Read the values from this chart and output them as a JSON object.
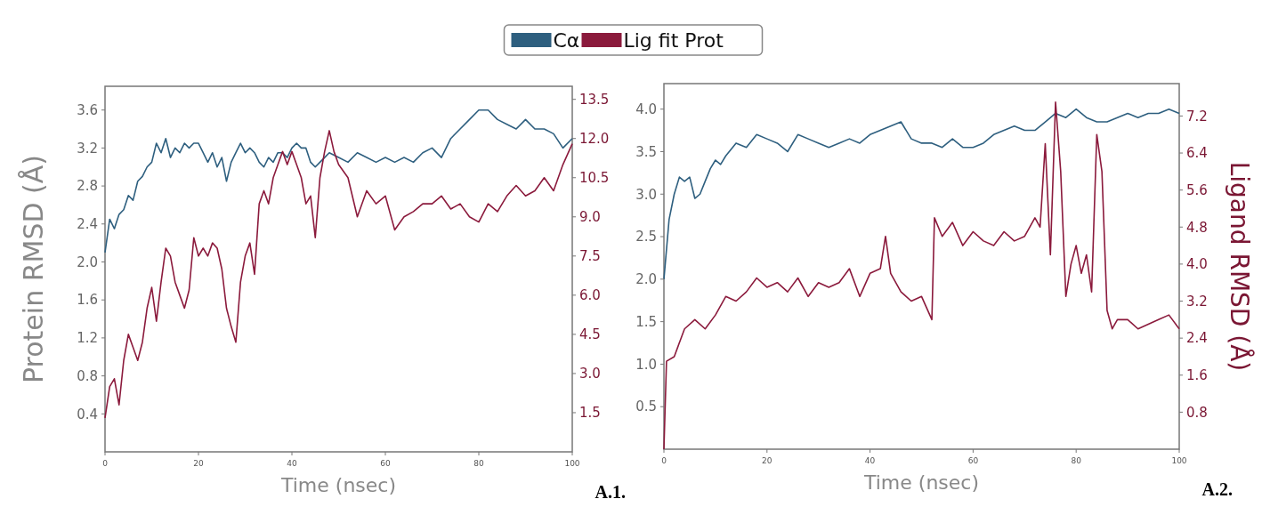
{
  "chart_data": [
    {
      "type": "line",
      "xlabel": "Time (nsec)",
      "ylabel": "Protein RMSD (Å)",
      "legend": "top",
      "annotations": [
        "A.1."
      ],
      "xlim": [
        0,
        100
      ],
      "xticks": [
        0,
        20,
        40,
        60,
        80,
        100
      ],
      "ylim": [
        0,
        3.85
      ],
      "yticks": [
        0.4,
        0.8,
        1.2,
        1.6,
        {
          "value": 2,
          "label": "2.0"
        },
        2.4,
        2.8,
        3.2,
        3.6
      ],
      "y2lim": [
        0,
        14
      ],
      "y2ticks": [
        1.5,
        {
          "value": 3,
          "label": "3.0"
        },
        4.5,
        {
          "value": 6,
          "label": "6.0"
        },
        7.5,
        {
          "value": 9,
          "label": "9.0"
        },
        10.5,
        {
          "value": 12,
          "label": "12.0"
        },
        13.5
      ],
      "series": [
        {
          "name": "Cα",
          "color": "#2e5f7f",
          "x": [
            0,
            1,
            2,
            3,
            4,
            5,
            6,
            7,
            8,
            9,
            10,
            11,
            12,
            13,
            14,
            15,
            16,
            17,
            18,
            19,
            20,
            21,
            22,
            23,
            24,
            25,
            26,
            27,
            28,
            29,
            30,
            31,
            32,
            33,
            34,
            35,
            36,
            37,
            38,
            39,
            40,
            41,
            42,
            43,
            44,
            45,
            46,
            47,
            48,
            50,
            52,
            54,
            56,
            58,
            60,
            62,
            64,
            66,
            68,
            70,
            72,
            74,
            76,
            78,
            80,
            82,
            84,
            86,
            88,
            90,
            92,
            94,
            96,
            98,
            100
          ],
          "values": [
            2.1,
            2.45,
            2.35,
            2.5,
            2.55,
            2.7,
            2.65,
            2.85,
            2.9,
            3.0,
            3.05,
            3.25,
            3.15,
            3.3,
            3.1,
            3.2,
            3.15,
            3.25,
            3.2,
            3.25,
            3.25,
            3.15,
            3.05,
            3.15,
            3.0,
            3.1,
            2.85,
            3.05,
            3.15,
            3.25,
            3.15,
            3.2,
            3.15,
            3.05,
            3.0,
            3.1,
            3.05,
            3.15,
            3.15,
            3.1,
            3.2,
            3.25,
            3.2,
            3.2,
            3.05,
            3.0,
            3.05,
            3.1,
            3.15,
            3.1,
            3.05,
            3.15,
            3.1,
            3.05,
            3.1,
            3.05,
            3.1,
            3.05,
            3.15,
            3.2,
            3.1,
            3.3,
            3.4,
            3.5,
            3.6,
            3.6,
            3.5,
            3.45,
            3.4,
            3.5,
            3.4,
            3.4,
            3.35,
            3.2,
            3.3
          ]
        },
        {
          "name": "Lig fit Prot",
          "color": "#8b1a3c",
          "axis": "y2",
          "x": [
            0,
            1,
            2,
            3,
            4,
            5,
            6,
            7,
            8,
            9,
            10,
            11,
            12,
            13,
            14,
            15,
            16,
            17,
            18,
            19,
            20,
            21,
            22,
            23,
            24,
            25,
            26,
            27,
            28,
            29,
            30,
            31,
            32,
            33,
            34,
            35,
            36,
            37,
            38,
            39,
            40,
            41,
            42,
            43,
            44,
            45,
            46,
            47,
            48,
            49,
            50,
            52,
            54,
            56,
            58,
            60,
            62,
            64,
            66,
            68,
            70,
            72,
            74,
            76,
            78,
            80,
            82,
            84,
            86,
            88,
            90,
            92,
            94,
            96,
            98,
            100
          ],
          "values": [
            1.3,
            2.5,
            2.8,
            1.8,
            3.5,
            4.5,
            4.0,
            3.5,
            4.2,
            5.5,
            6.3,
            5.0,
            6.5,
            7.8,
            7.5,
            6.5,
            6.0,
            5.5,
            6.2,
            8.2,
            7.5,
            7.8,
            7.5,
            8.0,
            7.8,
            7.0,
            5.5,
            4.8,
            4.2,
            6.5,
            7.5,
            8.0,
            6.8,
            9.5,
            10.0,
            9.5,
            10.5,
            11.0,
            11.5,
            11.0,
            11.5,
            11.0,
            10.5,
            9.5,
            9.8,
            8.2,
            10.5,
            11.5,
            12.3,
            11.5,
            11.0,
            10.5,
            9.0,
            10.0,
            9.5,
            9.8,
            8.5,
            9.0,
            9.2,
            9.5,
            9.5,
            9.8,
            9.3,
            9.5,
            9.0,
            8.8,
            9.5,
            9.2,
            9.8,
            10.2,
            9.8,
            10.0,
            10.5,
            10.0,
            11.0,
            11.8
          ]
        }
      ]
    },
    {
      "type": "line",
      "xlabel": "Time (nsec)",
      "y2label": "Ligand RMSD (Å)",
      "annotations": [
        "A.2."
      ],
      "xlim": [
        0,
        100
      ],
      "xticks": [
        0,
        20,
        40,
        60,
        80,
        100
      ],
      "ylim": [
        0,
        4.3
      ],
      "yticks": [
        0.5,
        {
          "value": 1,
          "label": "1.0"
        },
        1.5,
        {
          "value": 2,
          "label": "2.0"
        },
        2.5,
        {
          "value": 3,
          "label": "3.0"
        },
        3.5,
        {
          "value": 4,
          "label": "4.0"
        }
      ],
      "y2lim": [
        0,
        7.9
      ],
      "y2ticks": [
        0.8,
        1.6,
        2.4,
        3.2,
        {
          "value": 4,
          "label": "4.0"
        },
        4.8,
        5.6,
        6.4,
        7.2
      ],
      "series": [
        {
          "color": "#2e5f7f",
          "x": [
            0,
            1,
            2,
            3,
            4,
            5,
            6,
            7,
            8,
            9,
            10,
            11,
            12,
            14,
            16,
            18,
            20,
            22,
            24,
            26,
            28,
            30,
            32,
            34,
            36,
            38,
            40,
            42,
            44,
            46,
            48,
            50,
            52,
            54,
            56,
            58,
            60,
            62,
            64,
            66,
            68,
            70,
            72,
            74,
            76,
            78,
            80,
            82,
            84,
            86,
            88,
            90,
            92,
            94,
            96,
            98,
            100
          ],
          "values": [
            2.0,
            2.7,
            3.0,
            3.2,
            3.15,
            3.2,
            2.95,
            3.0,
            3.15,
            3.3,
            3.4,
            3.35,
            3.45,
            3.6,
            3.55,
            3.7,
            3.65,
            3.6,
            3.5,
            3.7,
            3.65,
            3.6,
            3.55,
            3.6,
            3.65,
            3.6,
            3.7,
            3.75,
            3.8,
            3.85,
            3.65,
            3.6,
            3.6,
            3.55,
            3.65,
            3.55,
            3.55,
            3.6,
            3.7,
            3.75,
            3.8,
            3.75,
            3.75,
            3.85,
            3.95,
            3.9,
            4.0,
            3.9,
            3.85,
            3.85,
            3.9,
            3.95,
            3.9,
            3.95,
            3.95,
            4.0,
            3.95
          ]
        },
        {
          "color": "#8b1a3c",
          "axis": "y2",
          "x": [
            0,
            0.5,
            2,
            4,
            6,
            8,
            10,
            12,
            14,
            16,
            18,
            20,
            22,
            24,
            26,
            28,
            30,
            32,
            34,
            36,
            38,
            40,
            42,
            43,
            44,
            46,
            48,
            50,
            52,
            52.5,
            54,
            56,
            58,
            60,
            62,
            64,
            66,
            68,
            70,
            72,
            73,
            74,
            75,
            76,
            77,
            78,
            79,
            80,
            81,
            82,
            83,
            84,
            85,
            86,
            87,
            88,
            90,
            92,
            94,
            96,
            98,
            100
          ],
          "values": [
            0.0,
            1.9,
            2.0,
            2.6,
            2.8,
            2.6,
            2.9,
            3.3,
            3.2,
            3.4,
            3.7,
            3.5,
            3.6,
            3.4,
            3.7,
            3.3,
            3.6,
            3.5,
            3.6,
            3.9,
            3.3,
            3.8,
            3.9,
            4.6,
            3.8,
            3.4,
            3.2,
            3.3,
            2.8,
            5.0,
            4.6,
            4.9,
            4.4,
            4.7,
            4.5,
            4.4,
            4.7,
            4.5,
            4.6,
            5.0,
            4.8,
            6.6,
            4.2,
            7.5,
            6.0,
            3.3,
            4.0,
            4.4,
            3.8,
            4.2,
            3.4,
            6.8,
            6.0,
            3.0,
            2.6,
            2.8,
            2.8,
            2.6,
            2.7,
            2.8,
            2.9,
            2.6
          ]
        }
      ]
    }
  ]
}
